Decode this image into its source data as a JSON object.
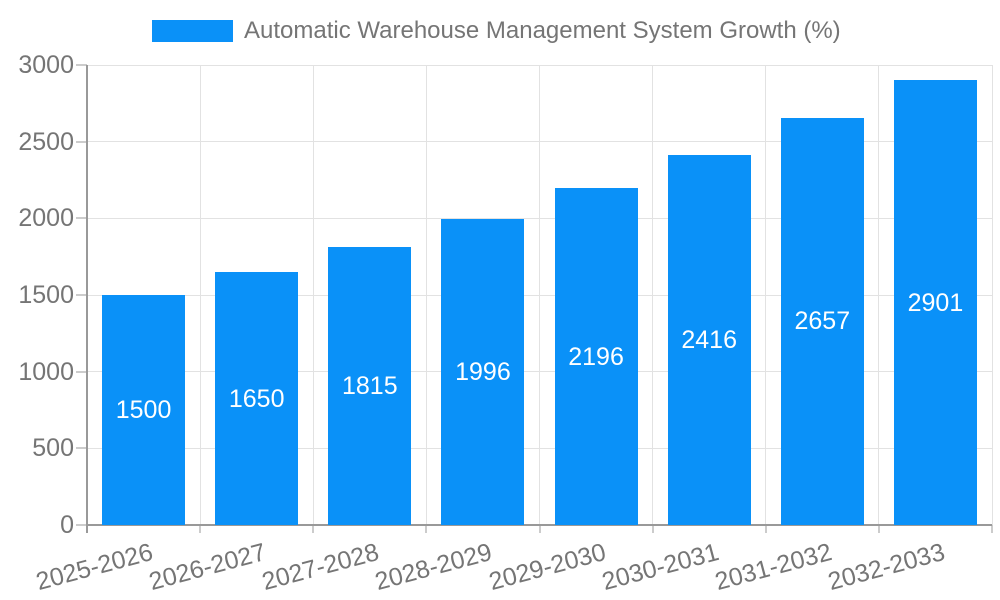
{
  "legend": {
    "label": "Automatic Warehouse Management System Growth (%)"
  },
  "chart_data": {
    "type": "bar",
    "title": "Automatic Warehouse Management System Growth (%)",
    "categories": [
      "2025-2026",
      "2026-2027",
      "2027-2028",
      "2028-2029",
      "2029-2030",
      "2030-2031",
      "2031-2032",
      "2032-2033"
    ],
    "values": [
      1500,
      1650,
      1815,
      1996,
      2196,
      2416,
      2657,
      2901
    ],
    "xlabel": "",
    "ylabel": "",
    "ylim": [
      0,
      3000
    ],
    "yticks": [
      0,
      500,
      1000,
      1500,
      2000,
      2500,
      3000
    ],
    "grid": true,
    "legend_position": "top-left",
    "x_tick_rotation_deg": 15,
    "colors": {
      "bar": "#0a91f8",
      "bar_label": "#ffffff",
      "axis_line": "#999999",
      "grid_line": "#e2e2e2",
      "tick_mark": "#cccccc",
      "tick_label": "#757575",
      "legend_text": "#757575"
    }
  }
}
